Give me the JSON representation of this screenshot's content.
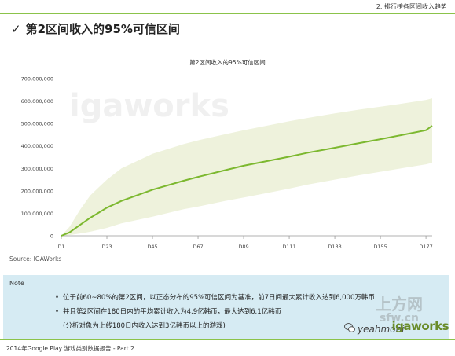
{
  "header": {
    "section_tag": "2. 排行榜各区间收入趋势",
    "title": "第2区间收入的95%可信区间"
  },
  "chart_data": {
    "type": "area",
    "title": "第2区间收入的95%可信区间",
    "watermark": "igaworks",
    "x": [
      "D1",
      "D23",
      "D45",
      "D67",
      "D89",
      "D111",
      "D133",
      "D155",
      "D177"
    ],
    "yticks": [
      "0",
      "100,000,000",
      "200,000,000",
      "300,000,000",
      "400,000,000",
      "500,000,000",
      "600,000,000",
      "700,000,000"
    ],
    "ylim": [
      0,
      700000000
    ],
    "xlim": [
      1,
      180
    ],
    "series": [
      {
        "x": [
          1,
          5,
          10,
          15,
          23,
          30,
          45,
          60,
          67,
          80,
          89,
          100,
          111,
          120,
          133,
          145,
          155,
          165,
          177,
          180
        ],
        "values": [
          0,
          15000000,
          48000000,
          80000000,
          125000000,
          155000000,
          205000000,
          245000000,
          262000000,
          292000000,
          312000000,
          332000000,
          352000000,
          370000000,
          392000000,
          413000000,
          430000000,
          448000000,
          470000000,
          490000000
        ],
        "color": "#7cb82f"
      }
    ],
    "band": {
      "x": [
        1,
        5,
        10,
        15,
        23,
        30,
        45,
        60,
        67,
        80,
        89,
        100,
        111,
        120,
        133,
        145,
        155,
        165,
        177,
        180
      ],
      "upper": [
        0,
        40000000,
        115000000,
        180000000,
        250000000,
        300000000,
        365000000,
        408000000,
        425000000,
        452000000,
        470000000,
        490000000,
        510000000,
        525000000,
        545000000,
        562000000,
        575000000,
        588000000,
        605000000,
        612000000
      ],
      "lower": [
        0,
        3000000,
        10000000,
        18000000,
        35000000,
        55000000,
        85000000,
        118000000,
        130000000,
        155000000,
        170000000,
        190000000,
        210000000,
        228000000,
        250000000,
        270000000,
        285000000,
        300000000,
        318000000,
        325000000
      ],
      "color": "#eef2dc"
    },
    "grid": false,
    "legend": "none"
  },
  "source": "Source: IGAWorks",
  "note": {
    "label": "Note",
    "lines": [
      "位于前60~80%的第2区间，以正态分布的95%可信区间为基准，前7日间最大累计收入达到6,000万韩币",
      "并且第2区间在180日内的平均累计收入为4.9亿韩币，最大达到6.1亿韩币",
      "(分析对象为上线180日内收入达到3亿韩币以上的游戏)"
    ]
  },
  "footer": {
    "text": "2014年Google Play 游戏类别数据报告 - Part 2",
    "brand": "igaworks"
  },
  "watermarks": {
    "site": "上方网",
    "site_url": "sfw.cn",
    "app": "yeahmobi"
  },
  "colors": {
    "accent": "#8bc34a",
    "note_bg": "#d6ebf3",
    "band": "#eef2dc",
    "line": "#7cb82f"
  }
}
